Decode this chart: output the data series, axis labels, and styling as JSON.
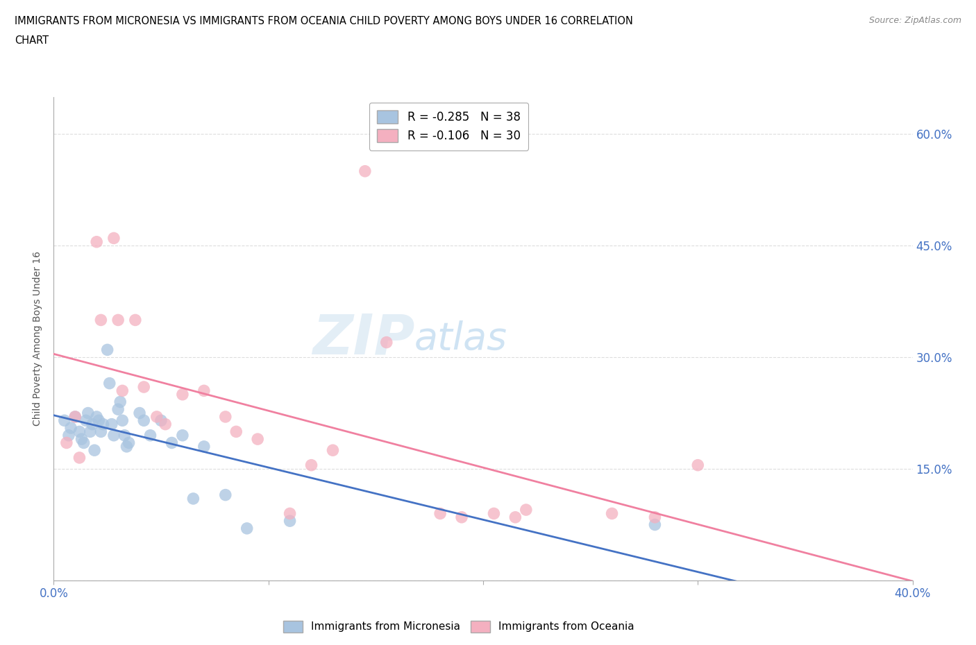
{
  "title_line1": "IMMIGRANTS FROM MICRONESIA VS IMMIGRANTS FROM OCEANIA CHILD POVERTY AMONG BOYS UNDER 16 CORRELATION",
  "title_line2": "CHART",
  "source": "Source: ZipAtlas.com",
  "ylabel": "Child Poverty Among Boys Under 16",
  "x_min": 0.0,
  "x_max": 0.4,
  "y_min": 0.0,
  "y_max": 0.65,
  "x_ticks": [
    0.0,
    0.1,
    0.2,
    0.3,
    0.4
  ],
  "x_tick_labels": [
    "0.0%",
    "",
    "",
    "",
    "40.0%"
  ],
  "y_ticks": [
    0.0,
    0.15,
    0.3,
    0.45,
    0.6
  ],
  "y_tick_labels": [
    "",
    "15.0%",
    "30.0%",
    "45.0%",
    "60.0%"
  ],
  "watermark_zip": "ZIP",
  "watermark_atlas": "atlas",
  "legend_label_mic": "R = -0.285   N = 38",
  "legend_label_oce": "R = -0.106   N = 30",
  "micronesia_color": "#a8c4e0",
  "oceania_color": "#f4b0c0",
  "micronesia_line_color": "#4472c4",
  "oceania_line_color": "#f080a0",
  "micronesia_x": [
    0.005,
    0.007,
    0.008,
    0.01,
    0.012,
    0.013,
    0.014,
    0.015,
    0.016,
    0.017,
    0.018,
    0.019,
    0.02,
    0.021,
    0.022,
    0.023,
    0.025,
    0.026,
    0.027,
    0.028,
    0.03,
    0.031,
    0.032,
    0.033,
    0.034,
    0.035,
    0.04,
    0.042,
    0.045,
    0.05,
    0.055,
    0.06,
    0.065,
    0.07,
    0.08,
    0.09,
    0.11,
    0.28
  ],
  "micronesia_y": [
    0.215,
    0.195,
    0.205,
    0.22,
    0.2,
    0.19,
    0.185,
    0.215,
    0.225,
    0.2,
    0.21,
    0.175,
    0.22,
    0.215,
    0.2,
    0.21,
    0.31,
    0.265,
    0.21,
    0.195,
    0.23,
    0.24,
    0.215,
    0.195,
    0.18,
    0.185,
    0.225,
    0.215,
    0.195,
    0.215,
    0.185,
    0.195,
    0.11,
    0.18,
    0.115,
    0.07,
    0.08,
    0.075
  ],
  "oceania_x": [
    0.006,
    0.01,
    0.012,
    0.02,
    0.022,
    0.028,
    0.03,
    0.032,
    0.038,
    0.042,
    0.048,
    0.052,
    0.06,
    0.07,
    0.08,
    0.085,
    0.095,
    0.11,
    0.12,
    0.13,
    0.145,
    0.155,
    0.18,
    0.19,
    0.205,
    0.215,
    0.22,
    0.26,
    0.28,
    0.3
  ],
  "oceania_y": [
    0.185,
    0.22,
    0.165,
    0.455,
    0.35,
    0.46,
    0.35,
    0.255,
    0.35,
    0.26,
    0.22,
    0.21,
    0.25,
    0.255,
    0.22,
    0.2,
    0.19,
    0.09,
    0.155,
    0.175,
    0.55,
    0.32,
    0.09,
    0.085,
    0.09,
    0.085,
    0.095,
    0.09,
    0.085,
    0.155
  ],
  "background_color": "#ffffff",
  "grid_color": "#dddddd"
}
